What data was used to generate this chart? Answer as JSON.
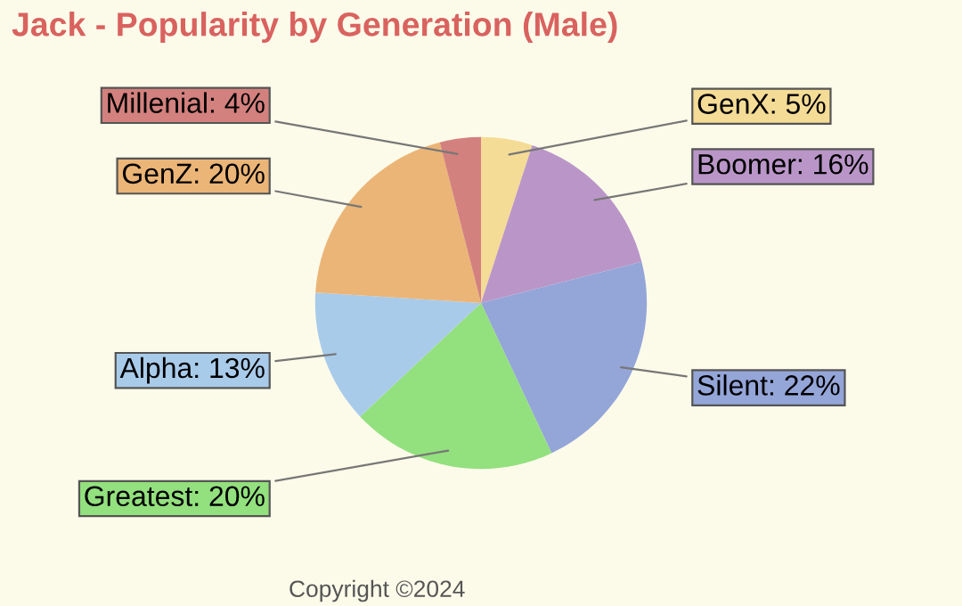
{
  "chart_data": {
    "type": "pie",
    "title": "Jack - Popularity by Generation (Male)",
    "categories": [
      "GenX: 5%",
      "Boomer: 16%",
      "Silent: 22%",
      "Greatest: 20%",
      "Alpha: 13%",
      "GenZ: 20%",
      "Millenial: 4%"
    ],
    "values": [
      5,
      16,
      22,
      20,
      13,
      20,
      4
    ],
    "colors": [
      "#f5dc96",
      "#ba96c8",
      "#94a5d8",
      "#93e07e",
      "#a9cbea",
      "#ebb577",
      "#d3817e"
    ],
    "annotations": [
      "Copyright ©2024"
    ]
  }
}
